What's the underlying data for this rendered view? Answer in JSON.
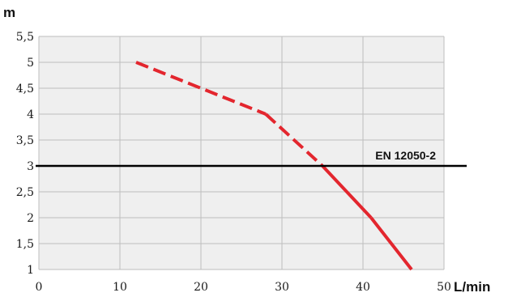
{
  "chart_data": {
    "type": "line",
    "xlabel": "L/min",
    "ylabel": "m",
    "xlim": [
      0,
      50
    ],
    "ylim": [
      1,
      5.5
    ],
    "x_ticks": [
      "0",
      "10",
      "20",
      "30",
      "40",
      "50"
    ],
    "y_ticks": [
      "1",
      "1,5",
      "2",
      "2,5",
      "3",
      "3,5",
      "4",
      "4,5",
      "5",
      "5,5"
    ],
    "grid": true,
    "series": [
      {
        "points": [
          [
            12,
            5.0
          ],
          [
            28,
            4.0
          ],
          [
            35,
            3.0
          ],
          [
            41,
            2.0
          ],
          [
            46,
            1.0
          ]
        ],
        "line_style": "dashed-then-solid",
        "color": "#e3262e"
      }
    ],
    "reference_lines": [
      {
        "y": 3,
        "label": "EN 12050-2",
        "color": "#000000"
      }
    ]
  }
}
